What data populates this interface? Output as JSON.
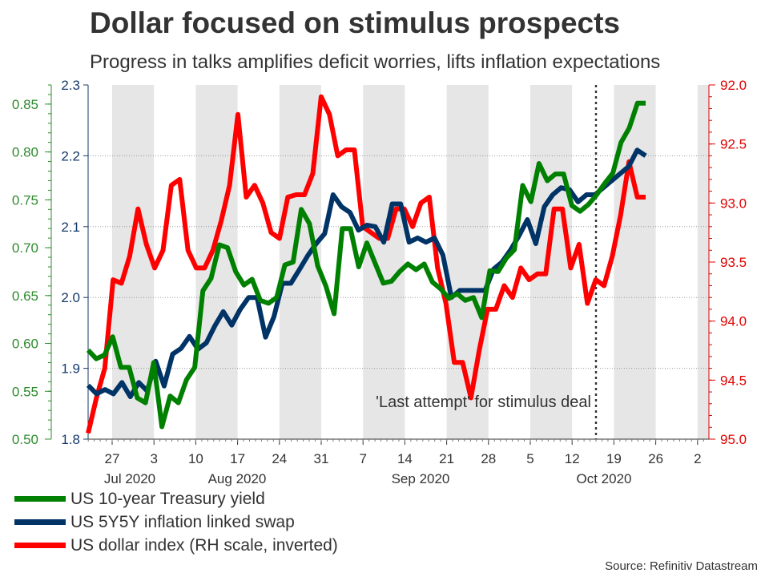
{
  "title": "Dollar focused on stimulus prospects",
  "subtitle": "Progress in talks amplifies deficit worries, lifts inflation expectations",
  "source": "Source: Refinitiv Datastream",
  "chart_data": {
    "type": "line",
    "x_tick_labels": [
      "27",
      "3",
      "10",
      "17",
      "24",
      "31",
      "7",
      "14",
      "21",
      "28",
      "5",
      "12",
      "19",
      "26",
      "2"
    ],
    "month_labels": [
      "Jul 2020",
      "Aug 2020",
      "Sep 2020",
      "Oct 2020"
    ],
    "left_axis": {
      "ticks": [
        "0.50",
        "0.55",
        "0.60",
        "0.65",
        "0.70",
        "0.75",
        "0.80",
        "0.85"
      ],
      "ylim": [
        0.5,
        0.87
      ]
    },
    "middle_axis": {
      "ticks": [
        "1.8",
        "1.9",
        "2.0",
        "2.1",
        "2.2",
        "2.3"
      ],
      "ylim": [
        1.8,
        2.3
      ]
    },
    "right_axis": {
      "ticks": [
        "92.0",
        "92.5",
        "93.0",
        "93.5",
        "94.0",
        "94.5",
        "95.0"
      ],
      "ylim": [
        92.0,
        95.0
      ],
      "inverted": true
    },
    "annotation": "'Last attempt' for stimulus deal",
    "series": [
      {
        "name": "US 10-year Treasury yield",
        "color": "#008000",
        "axis": "left",
        "values": [
          0.593,
          0.584,
          0.588,
          0.607,
          0.575,
          0.575,
          0.543,
          0.538,
          0.58,
          0.513,
          0.545,
          0.538,
          0.562,
          0.575,
          0.655,
          0.668,
          0.703,
          0.7,
          0.675,
          0.661,
          0.667,
          0.645,
          0.642,
          0.648,
          0.682,
          0.685,
          0.74,
          0.725,
          0.681,
          0.66,
          0.631,
          0.72,
          0.72,
          0.68,
          0.705,
          0.684,
          0.663,
          0.665,
          0.675,
          0.683,
          0.677,
          0.683,
          0.664,
          0.657,
          0.647,
          0.652,
          0.645,
          0.648,
          0.627,
          0.676,
          0.675,
          0.689,
          0.698,
          0.765,
          0.748,
          0.788,
          0.77,
          0.777,
          0.777,
          0.744,
          0.738,
          0.745,
          0.755,
          0.767,
          0.778,
          0.81,
          0.825,
          0.851,
          0.851
        ]
      },
      {
        "name": "US 5Y5Y inflation linked swap",
        "color": "#003366",
        "axis": "middle",
        "values": [
          1.876,
          1.864,
          1.87,
          1.864,
          1.88,
          1.86,
          1.88,
          1.868,
          1.91,
          1.875,
          1.92,
          1.928,
          1.945,
          1.927,
          1.936,
          1.96,
          1.98,
          1.961,
          1.983,
          2.0,
          2.0,
          1.944,
          1.973,
          2.02,
          2.02,
          2.039,
          2.059,
          2.076,
          2.09,
          2.145,
          2.128,
          2.12,
          2.095,
          2.102,
          2.1,
          2.078,
          2.132,
          2.132,
          2.078,
          2.084,
          2.078,
          2.084,
          2.06,
          2.0,
          2.01,
          2.01,
          2.01,
          2.01,
          2.04,
          2.05,
          2.067,
          2.087,
          2.11,
          2.076,
          2.128,
          2.145,
          2.155,
          2.152,
          2.135,
          2.145,
          2.145,
          2.155,
          2.165,
          2.175,
          2.185,
          2.208,
          2.2
        ]
      },
      {
        "name": "US dollar index (RH scale, inverted)",
        "color": "#ff0000",
        "axis": "right",
        "values": [
          94.95,
          94.65,
          94.4,
          93.65,
          93.68,
          93.45,
          93.05,
          93.35,
          93.55,
          93.4,
          92.85,
          92.8,
          93.4,
          93.55,
          93.55,
          93.4,
          93.15,
          92.85,
          92.25,
          92.95,
          92.85,
          93.0,
          93.25,
          93.3,
          92.95,
          92.93,
          92.93,
          92.75,
          92.1,
          92.25,
          92.6,
          92.55,
          92.55,
          93.2,
          93.25,
          93.3,
          93.3,
          93.05,
          93.05,
          93.2,
          93.0,
          92.95,
          93.55,
          93.85,
          94.35,
          94.35,
          94.65,
          94.25,
          93.9,
          93.9,
          93.7,
          93.8,
          93.55,
          93.65,
          93.6,
          93.6,
          93.05,
          93.05,
          93.55,
          93.35,
          93.85,
          93.65,
          93.7,
          93.45,
          93.1,
          92.65,
          92.95,
          92.95
        ]
      }
    ]
  }
}
